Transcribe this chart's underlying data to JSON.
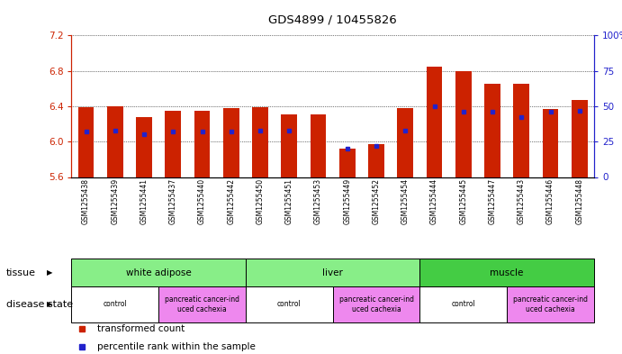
{
  "title": "GDS4899 / 10455826",
  "samples": [
    "GSM1255438",
    "GSM1255439",
    "GSM1255441",
    "GSM1255437",
    "GSM1255440",
    "GSM1255442",
    "GSM1255450",
    "GSM1255451",
    "GSM1255453",
    "GSM1255449",
    "GSM1255452",
    "GSM1255454",
    "GSM1255444",
    "GSM1255445",
    "GSM1255447",
    "GSM1255443",
    "GSM1255446",
    "GSM1255448"
  ],
  "red_values": [
    6.39,
    6.4,
    6.28,
    6.35,
    6.35,
    6.38,
    6.39,
    6.31,
    6.31,
    5.92,
    5.97,
    6.38,
    6.85,
    6.8,
    6.65,
    6.65,
    6.37,
    6.47
  ],
  "blue_percentile": [
    32,
    33,
    30,
    32,
    32,
    32,
    33,
    33,
    null,
    20,
    22,
    33,
    50,
    46,
    46,
    42,
    46,
    47
  ],
  "ymin": 5.6,
  "ymax": 7.2,
  "y2min": 0,
  "y2max": 100,
  "yticks_left": [
    5.6,
    6.0,
    6.4,
    6.8,
    7.2
  ],
  "yticks_right": [
    0,
    25,
    50,
    75,
    100
  ],
  "ytick_labels_right": [
    "0",
    "25",
    "50",
    "75",
    "100%"
  ],
  "bar_color": "#cc2200",
  "dot_color": "#2222cc",
  "bar_width": 0.55,
  "tissue_groups": [
    {
      "label": "white adipose",
      "start": 0,
      "end": 5,
      "color": "#88ee88"
    },
    {
      "label": "liver",
      "start": 6,
      "end": 11,
      "color": "#88ee88"
    },
    {
      "label": "muscle",
      "start": 12,
      "end": 17,
      "color": "#44cc44"
    }
  ],
  "disease_groups": [
    {
      "label": "control",
      "start": 0,
      "end": 2,
      "color": "#ffffff"
    },
    {
      "label": "pancreatic cancer-ind\nuced cachexia",
      "start": 3,
      "end": 5,
      "color": "#ee88ee"
    },
    {
      "label": "control",
      "start": 6,
      "end": 8,
      "color": "#ffffff"
    },
    {
      "label": "pancreatic cancer-ind\nuced cachexia",
      "start": 9,
      "end": 11,
      "color": "#ee88ee"
    },
    {
      "label": "control",
      "start": 12,
      "end": 14,
      "color": "#ffffff"
    },
    {
      "label": "pancreatic cancer-ind\nuced cachexia",
      "start": 15,
      "end": 17,
      "color": "#ee88ee"
    }
  ],
  "legend_items": [
    {
      "label": "transformed count",
      "color": "#cc2200",
      "marker": "s"
    },
    {
      "label": "percentile rank within the sample",
      "color": "#2222cc",
      "marker": "s"
    }
  ],
  "tissue_label": "tissue",
  "disease_label": "disease state",
  "bg_color": "#ffffff",
  "label_bg_color": "#cccccc",
  "grid_color": "#000000",
  "left_axis_color": "#cc2200",
  "right_axis_color": "#2222cc"
}
